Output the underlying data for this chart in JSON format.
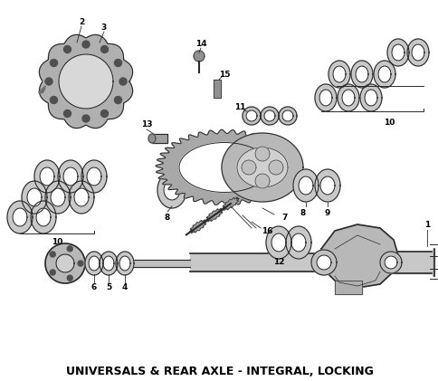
{
  "title": "UNIVERSALS & REAR AXLE - INTEGRAL, LOCKING",
  "title_fontsize": 9,
  "title_fontweight": "bold",
  "bg_color": "#ffffff",
  "fig_width": 4.85,
  "fig_height": 4.21,
  "dpi": 100,
  "lc": "#2a2a2a",
  "fc_dark": "#707070",
  "fc_mid": "#a0a0a0",
  "fc_light": "#d0d0d0",
  "fc_white": "#ffffff"
}
